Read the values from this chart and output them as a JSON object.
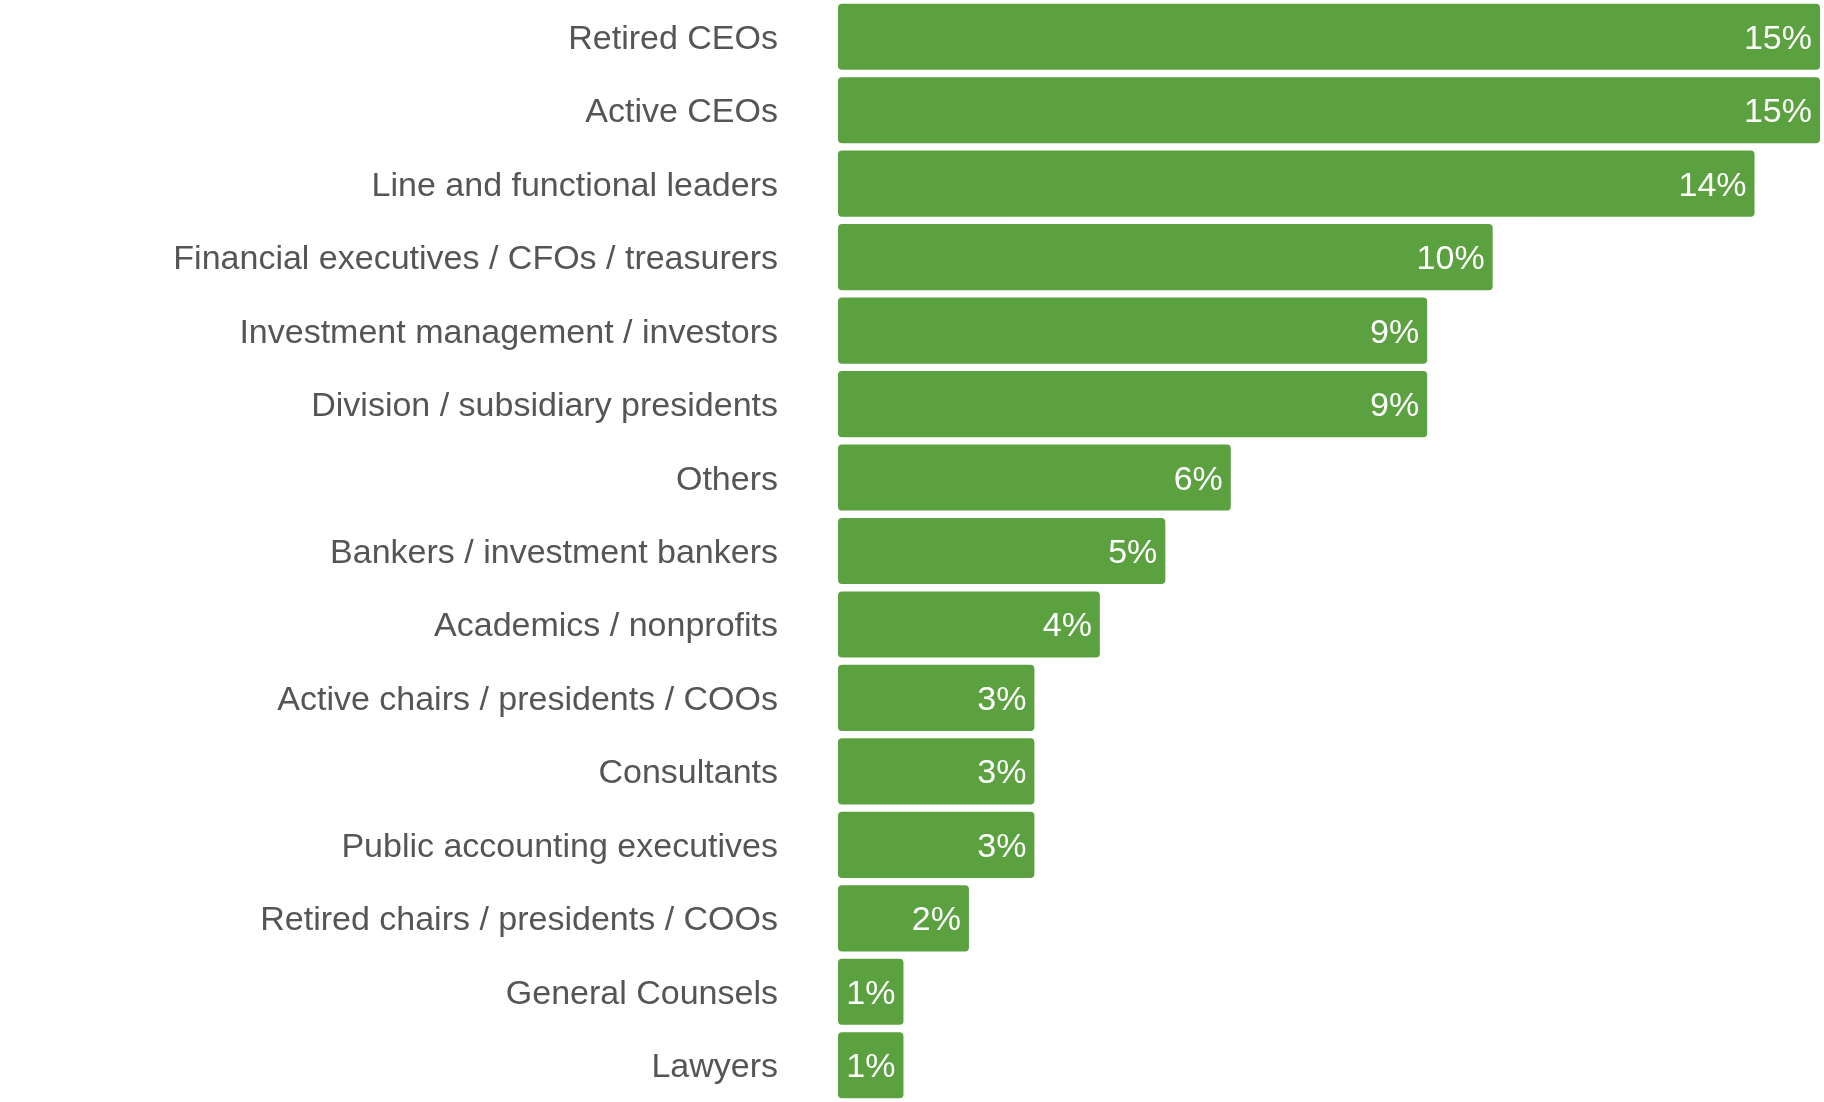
{
  "chart_data": {
    "type": "bar",
    "orientation": "horizontal",
    "relative": false,
    "categories": [
      "Retired CEOs",
      "Active CEOs",
      "Line and functional leaders",
      "Financial executives / CFOs / treasurers",
      "Investment management / investors",
      "Division / subsidiary presidents",
      "Others",
      "Bankers / investment bankers",
      "Academics / nonprofits",
      "Active chairs / presidents / COOs",
      "Consultants",
      "Public accounting executives",
      "Retired chairs / presidents / COOs",
      "General Counsels",
      "Lawyers"
    ],
    "values": [
      15,
      15,
      14,
      10,
      9,
      9,
      6,
      5,
      4,
      3,
      3,
      3,
      2,
      1,
      1
    ],
    "value_labels": [
      "15%",
      "15%",
      "14%",
      "10%",
      "9%",
      "9%",
      "6%",
      "5%",
      "4%",
      "3%",
      "3%",
      "3%",
      "2%",
      "1%",
      "1%"
    ],
    "color": "#5ba140"
  }
}
